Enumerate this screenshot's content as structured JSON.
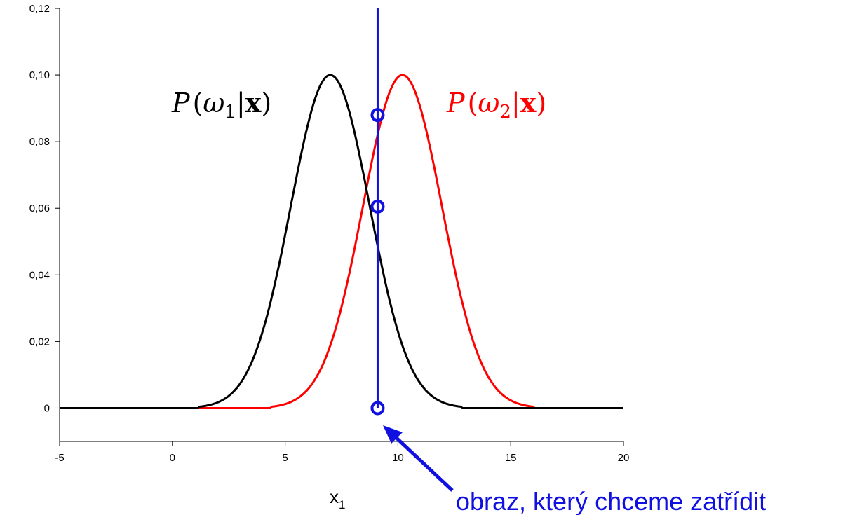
{
  "chart_data": {
    "type": "line",
    "xlim": [
      -5,
      20
    ],
    "ylim": [
      -0.01,
      0.12
    ],
    "x_ticks": [
      "-5",
      "0",
      "5",
      "10",
      "15",
      "20"
    ],
    "y_ticks": [
      "0",
      "0,02",
      "0,04",
      "0,06",
      "0,08",
      "0,10",
      "0,12"
    ],
    "y_tick_values": [
      0,
      0.02,
      0.04,
      0.06,
      0.08,
      0.1,
      0.12
    ],
    "x_tick_values": [
      -5,
      0,
      5,
      10,
      15,
      20
    ],
    "xlabel_main": "x",
    "xlabel_sub": "1",
    "grid": false,
    "series": [
      {
        "label_parts": {
          "p": "P",
          "open": "(",
          "omega": "ω",
          "sub": "1",
          "bar": "|",
          "x": "x",
          "close": ")"
        },
        "color": "#000000",
        "mean": 7,
        "peak": 0.1,
        "sigma": 1.75
      },
      {
        "label_parts": {
          "p": "P",
          "open": "(",
          "omega": "ω",
          "sub": "2",
          "bar": "|",
          "x": "x",
          "close": ")"
        },
        "color": "#ff0000",
        "mean": 10.2,
        "peak": 0.1,
        "sigma": 1.75
      }
    ],
    "vertical_line": {
      "x": 9.1,
      "color": "#1010e0"
    },
    "markers": [
      {
        "x": 9.1,
        "y": 0.088
      },
      {
        "x": 9.1,
        "y": 0.0605
      },
      {
        "x": 9.1,
        "y": 0.0
      }
    ],
    "annotation": {
      "text": "obraz, který chceme zatřídit",
      "color": "#1010e0"
    }
  }
}
